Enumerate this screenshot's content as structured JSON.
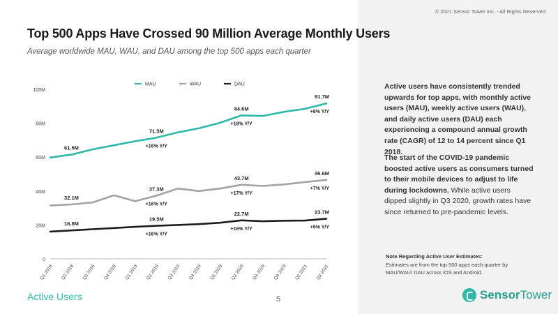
{
  "title": "Top 500 Apps Have Crossed 90 Million Average Monthly Users",
  "subtitle": "Average worldwide MAU, WAU, and DAU among the top 500 apps each quarter",
  "copyright": "© 2021 Sensor Tower Inc. - All Rights Reserved",
  "colors": {
    "mau": "#2fb8a8",
    "wau": "#a3a3a3",
    "dau": "#1c1c1c",
    "accent": "#2fb8a8",
    "sidebar_bg": "#f2f2f2"
  },
  "chart_data": {
    "type": "line",
    "categories": [
      "Q1 2018",
      "Q2 2018",
      "Q3 2018",
      "Q4 2018",
      "Q1 2019",
      "Q2 2019",
      "Q3 2019",
      "Q4 2019",
      "Q1 2020",
      "Q2 2020",
      "Q3 2020",
      "Q4 2020",
      "Q1 2021",
      "Q2 2021"
    ],
    "y_ticks": [
      {
        "value": 0,
        "label": "0"
      },
      {
        "value": 20,
        "label": "20M"
      },
      {
        "value": 40,
        "label": "40M"
      },
      {
        "value": 60,
        "label": "60M"
      },
      {
        "value": 80,
        "label": "80M"
      },
      {
        "value": 100,
        "label": "100M"
      }
    ],
    "ylim": [
      0,
      100
    ],
    "legend": "top-center",
    "series": [
      {
        "name": "MAU",
        "key": "mau",
        "values": [
          59.8,
          61.5,
          64.6,
          67.0,
          69.4,
          71.5,
          74.6,
          77.0,
          80.3,
          84.6,
          84.3,
          86.7,
          88.5,
          91.7
        ]
      },
      {
        "name": "WAU",
        "key": "wau",
        "values": [
          31.5,
          32.1,
          33.3,
          37.5,
          34.0,
          37.3,
          41.5,
          40.0,
          41.5,
          43.7,
          43.0,
          43.9,
          45.3,
          46.6
        ]
      },
      {
        "name": "DAU",
        "key": "dau",
        "values": [
          16.1,
          16.8,
          17.5,
          18.2,
          18.9,
          19.5,
          20.0,
          20.5,
          21.3,
          22.7,
          22.2,
          22.5,
          22.6,
          23.7
        ]
      }
    ],
    "annotations": [
      {
        "series": "mau",
        "index": 1,
        "text": "61.5M",
        "pos": "above"
      },
      {
        "series": "mau",
        "index": 5,
        "text": "71.5M",
        "pos": "above"
      },
      {
        "series": "mau",
        "index": 5,
        "text": "+16% Y/Y",
        "pos": "below"
      },
      {
        "series": "mau",
        "index": 9,
        "text": "84.6M",
        "pos": "above"
      },
      {
        "series": "mau",
        "index": 9,
        "text": "+18% Y/Y",
        "pos": "below"
      },
      {
        "series": "mau",
        "index": 13,
        "text": "91.7M",
        "pos": "above"
      },
      {
        "series": "mau",
        "index": 13,
        "text": "+8% Y/Y",
        "pos": "below"
      },
      {
        "series": "wau",
        "index": 1,
        "text": "32.1M",
        "pos": "above"
      },
      {
        "series": "wau",
        "index": 5,
        "text": "37.3M",
        "pos": "above"
      },
      {
        "series": "wau",
        "index": 5,
        "text": "+16% Y/Y",
        "pos": "below"
      },
      {
        "series": "wau",
        "index": 9,
        "text": "43.7M",
        "pos": "above"
      },
      {
        "series": "wau",
        "index": 9,
        "text": "+17% Y/Y",
        "pos": "below"
      },
      {
        "series": "wau",
        "index": 13,
        "text": "46.6M",
        "pos": "above"
      },
      {
        "series": "wau",
        "index": 13,
        "text": "+7% Y/Y",
        "pos": "below"
      },
      {
        "series": "dau",
        "index": 1,
        "text": "16.8M",
        "pos": "above"
      },
      {
        "series": "dau",
        "index": 5,
        "text": "19.5M",
        "pos": "above"
      },
      {
        "series": "dau",
        "index": 5,
        "text": "+16% Y/Y",
        "pos": "below"
      },
      {
        "series": "dau",
        "index": 9,
        "text": "22.7M",
        "pos": "above"
      },
      {
        "series": "dau",
        "index": 9,
        "text": "+16% Y/Y",
        "pos": "below"
      },
      {
        "series": "dau",
        "index": 13,
        "text": "23.7M",
        "pos": "above"
      },
      {
        "series": "dau",
        "index": 13,
        "text": "+5% Y/Y",
        "pos": "below"
      }
    ]
  },
  "sidebar": {
    "para1": "Active users have consistently trended upwards for top apps, with monthly active users (MAU), weekly active users (WAU), and daily active users (DAU) each experiencing a compound annual growth rate (CAGR) of 12 to 14 percent since Q1 2018.",
    "para2_bold": "The start of the COVID-19 pandemic boosted active users as consumers turned to their mobile devices to adjust to life during lockdowns.",
    "para2_light": " While active users dipped slightly in Q3 2020, growth rates have since returned to pre-pandemic levels.",
    "note_title": "Note Regarding Active User Estimates:",
    "note_body": "Estimates are from the top 500 apps each quarter by MAU/WAU/ DAU across iOS and Android."
  },
  "footer": {
    "section": "Active Users",
    "page": "5",
    "brand_a": "Sensor",
    "brand_b": "Tower"
  }
}
